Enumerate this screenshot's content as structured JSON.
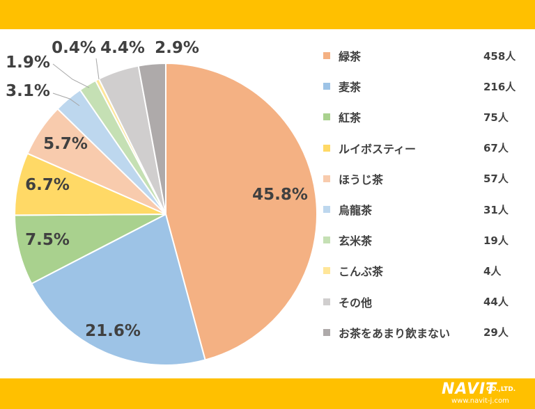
{
  "colors": {
    "band": "#FFC000",
    "text": "#404040"
  },
  "chart_data": {
    "type": "pie",
    "slices": [
      {
        "name": "緑茶",
        "count": "458人",
        "value": 45.8,
        "label": "45.8%",
        "color": "#F4B183"
      },
      {
        "name": "麦茶",
        "count": "216人",
        "value": 21.6,
        "label": "21.6%",
        "color": "#9DC3E6"
      },
      {
        "name": "紅茶",
        "count": "75人",
        "value": 7.5,
        "label": "7.5%",
        "color": "#A9D18E"
      },
      {
        "name": "ルイボスティー",
        "count": "67人",
        "value": 6.7,
        "label": "6.7%",
        "color": "#FFD966"
      },
      {
        "name": "ほうじ茶",
        "count": "57人",
        "value": 5.7,
        "label": "5.7%",
        "color": "#F8CBAD"
      },
      {
        "name": "烏龍茶",
        "count": "31人",
        "value": 3.1,
        "label": "3.1%",
        "color": "#BDD7EE"
      },
      {
        "name": "玄米茶",
        "count": "19人",
        "value": 1.9,
        "label": "1.9%",
        "color": "#C5E0B4"
      },
      {
        "name": "こんぶ茶",
        "count": "4人",
        "value": 0.4,
        "label": "0.4%",
        "color": "#FFE699"
      },
      {
        "name": "その他",
        "count": "44人",
        "value": 4.4,
        "label": "4.4%",
        "color": "#D0CECE"
      },
      {
        "name": "お茶をあまり飲まない",
        "count": "29人",
        "value": 2.9,
        "label": "2.9%",
        "color": "#AEAAAA"
      }
    ],
    "legend_position": "right"
  },
  "logo": {
    "brand": "NAVIT",
    "suffix": "CO.,LTD.",
    "url": "www.navit-j.com"
  }
}
